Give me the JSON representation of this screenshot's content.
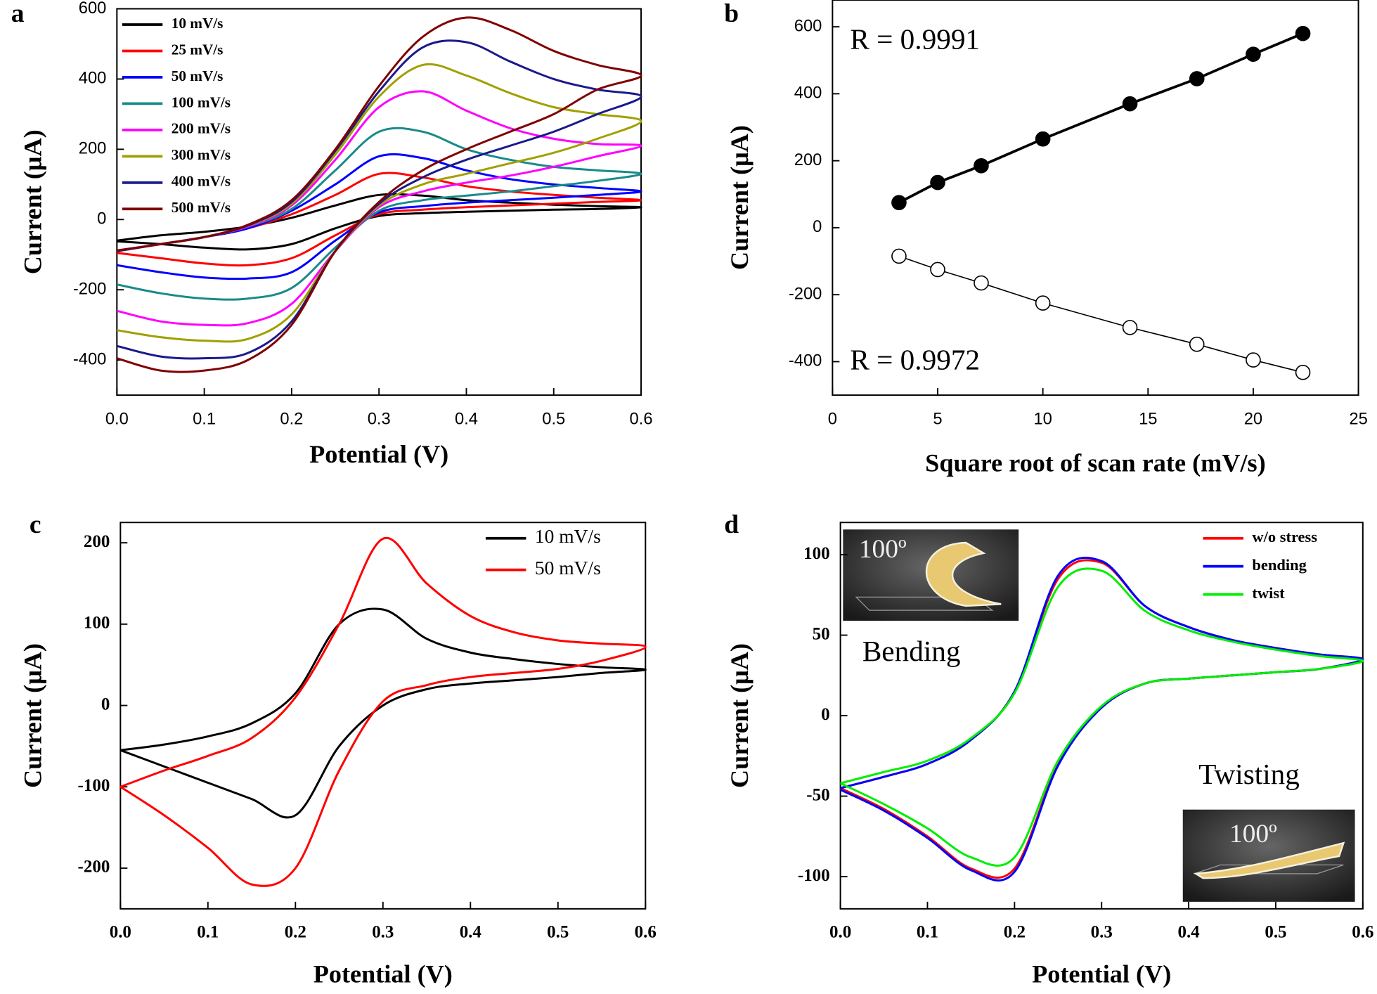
{
  "chart_data": [
    {
      "type": "line",
      "label": "a",
      "xlabel": "Potential (V)",
      "ylabel": "Current (μA)",
      "x": [
        0,
        0.05,
        0.1,
        0.15,
        0.2,
        0.25,
        0.3,
        0.35,
        0.4,
        0.45,
        0.5,
        0.55,
        0.6,
        0.55,
        0.5,
        0.45,
        0.4,
        0.35,
        0.3,
        0.25,
        0.2,
        0.15,
        0.1,
        0.05,
        0
      ],
      "xlim": [
        0,
        0.6
      ],
      "xticks": [
        {
          "value": 0,
          "label": "0.0"
        },
        0.1,
        0.2,
        0.3,
        0.4,
        0.5,
        0.6
      ],
      "ylim": [
        -500,
        600
      ],
      "yticks": [
        -400,
        -200,
        0,
        200,
        400,
        600
      ],
      "legend": "upper left",
      "series": [
        {
          "name": "10 mV/s",
          "color": "#000000",
          "values": [
            -60,
            -45,
            -35,
            -20,
            5,
            40,
            70,
            68,
            55,
            48,
            42,
            38,
            35,
            30,
            28,
            25,
            22,
            18,
            10,
            -25,
            -70,
            -85,
            -80,
            -70,
            -62
          ]
        },
        {
          "name": "25 mV/s",
          "color": "#ff0000",
          "values": [
            -90,
            -70,
            -50,
            -25,
            15,
            70,
            130,
            120,
            95,
            80,
            70,
            62,
            55,
            50,
            45,
            40,
            35,
            28,
            15,
            -45,
            -110,
            -130,
            -125,
            -110,
            -95
          ]
        },
        {
          "name": "50 mV/s",
          "color": "#0000ff",
          "values": [
            -90,
            -70,
            -50,
            -25,
            25,
            100,
            180,
            175,
            140,
            115,
            100,
            90,
            80,
            70,
            62,
            55,
            48,
            38,
            20,
            -60,
            -150,
            -168,
            -165,
            -150,
            -130
          ]
        },
        {
          "name": "100 mV/s",
          "color": "#1a8a8a",
          "values": [
            -90,
            -70,
            -50,
            -20,
            30,
            140,
            250,
            250,
            200,
            170,
            150,
            140,
            130,
            110,
            95,
            80,
            68,
            55,
            25,
            -80,
            -195,
            -225,
            -225,
            -210,
            -185
          ]
        },
        {
          "name": "200 mV/s",
          "color": "#ff00ff",
          "values": [
            -90,
            -70,
            -50,
            -20,
            40,
            170,
            320,
            365,
            310,
            260,
            230,
            215,
            210,
            180,
            150,
            125,
            105,
            80,
            35,
            -90,
            -240,
            -295,
            -300,
            -290,
            -260
          ]
        },
        {
          "name": "300 mV/s",
          "color": "#a0a000",
          "values": [
            -90,
            -70,
            -50,
            -18,
            45,
            185,
            350,
            440,
            410,
            360,
            320,
            300,
            280,
            230,
            190,
            160,
            130,
            100,
            40,
            -90,
            -270,
            -340,
            -345,
            -335,
            -315
          ]
        },
        {
          "name": "400 mV/s",
          "color": "#1a1a8a",
          "values": [
            -90,
            -70,
            -50,
            -17,
            50,
            195,
            365,
            490,
            505,
            450,
            400,
            370,
            350,
            300,
            250,
            210,
            170,
            120,
            45,
            -90,
            -290,
            -380,
            -395,
            -390,
            -360
          ]
        },
        {
          "name": "500 mV/s",
          "color": "#800000",
          "values": [
            -88,
            -70,
            -50,
            -15,
            55,
            200,
            380,
            520,
            575,
            540,
            480,
            440,
            410,
            370,
            300,
            250,
            200,
            140,
            50,
            -90,
            -300,
            -400,
            -430,
            -430,
            -395
          ]
        }
      ]
    },
    {
      "type": "scatter",
      "label": "b",
      "xlabel": "Square root of scan rate (mV/s)",
      "ylabel": "Current (μA)",
      "xlim": [
        0,
        25
      ],
      "xticks": [
        0,
        5,
        10,
        15,
        20,
        25
      ],
      "ylim": [
        -500,
        680
      ],
      "yticks": [
        -400,
        -200,
        0,
        200,
        400,
        600
      ],
      "annotations": [
        "R = 0.9991",
        "R = 0.9972"
      ],
      "series": [
        {
          "color": "#000000",
          "marker": "filled",
          "x": [
            3.16,
            5,
            7.07,
            10,
            14.14,
            17.32,
            20,
            22.36
          ],
          "values": [
            75,
            135,
            185,
            265,
            370,
            445,
            518,
            580
          ]
        },
        {
          "color": "#000000",
          "marker": "open",
          "x": [
            3.16,
            5,
            7.07,
            10,
            14.14,
            17.32,
            20,
            22.36
          ],
          "values": [
            -85,
            -125,
            -165,
            -225,
            -298,
            -348,
            -395,
            -432
          ]
        }
      ]
    },
    {
      "type": "line",
      "label": "c",
      "xlabel": "Potential (V)",
      "ylabel": "Current (μA)",
      "x": [
        0,
        0.05,
        0.1,
        0.15,
        0.2,
        0.25,
        0.3,
        0.35,
        0.4,
        0.45,
        0.5,
        0.55,
        0.6,
        0.55,
        0.5,
        0.45,
        0.4,
        0.35,
        0.3,
        0.25,
        0.2,
        0.15,
        0.1,
        0.05,
        0
      ],
      "xlim": [
        0,
        0.6
      ],
      "xticks": [
        {
          "value": 0,
          "label": "0.0"
        },
        0.1,
        0.2,
        0.3,
        0.4,
        0.5,
        0.6
      ],
      "ylim": [
        -250,
        225
      ],
      "yticks": [
        -200,
        -100,
        0,
        100,
        200
      ],
      "legend": "upper right",
      "series": [
        {
          "name": "10 mV/s",
          "color": "#000000",
          "values": [
            -55,
            -48,
            -38,
            -22,
            15,
            100,
            118,
            82,
            65,
            57,
            51,
            47,
            44,
            40,
            35,
            31,
            27,
            20,
            0,
            -50,
            -135,
            -115,
            -95,
            -75,
            -55
          ]
        },
        {
          "name": "50 mV/s",
          "color": "#ff0000",
          "values": [
            -100,
            -80,
            -62,
            -40,
            10,
            100,
            205,
            150,
            110,
            90,
            80,
            76,
            72,
            55,
            45,
            40,
            35,
            25,
            5,
            -80,
            -200,
            -220,
            -175,
            -135,
            -100
          ]
        }
      ]
    },
    {
      "type": "line",
      "label": "d",
      "xlabel": "Potential (V)",
      "ylabel": "Current (μA)",
      "x": [
        0,
        0.05,
        0.1,
        0.15,
        0.2,
        0.25,
        0.3,
        0.35,
        0.4,
        0.45,
        0.5,
        0.55,
        0.6,
        0.55,
        0.5,
        0.45,
        0.4,
        0.35,
        0.3,
        0.25,
        0.2,
        0.15,
        0.1,
        0.05,
        0
      ],
      "xlim": [
        0,
        0.6
      ],
      "xticks": [
        {
          "value": 0,
          "label": "0.0"
        },
        0.1,
        0.2,
        0.3,
        0.4,
        0.5,
        0.6
      ],
      "ylim": [
        -120,
        120
      ],
      "yticks": [
        -100,
        -50,
        0,
        50,
        100
      ],
      "legend": "upper right",
      "annotations": [
        "Bending",
        "Twisting"
      ],
      "insets": [
        "100º",
        "100º"
      ],
      "series": [
        {
          "name": "w/o stress",
          "color": "#ff0000",
          "values": [
            -45,
            -38,
            -30,
            -15,
            15,
            85,
            95,
            68,
            55,
            47,
            42,
            38,
            35,
            29,
            27,
            25,
            23,
            20,
            5,
            -30,
            -95,
            -95,
            -75,
            -58,
            -45
          ]
        },
        {
          "name": "bending",
          "color": "#0000ff",
          "values": [
            -45,
            -38,
            -30,
            -15,
            15,
            87,
            96,
            68,
            55,
            47,
            42,
            38,
            35,
            29,
            27,
            25,
            23,
            20,
            5,
            -31,
            -97,
            -96,
            -76,
            -59,
            -46
          ]
        },
        {
          "name": "twist",
          "color": "#00ee00",
          "values": [
            -42,
            -35,
            -28,
            -14,
            14,
            80,
            90,
            65,
            53,
            46,
            41,
            37,
            34,
            29,
            27,
            25,
            23,
            20,
            6,
            -28,
            -88,
            -88,
            -70,
            -55,
            -42
          ]
        }
      ]
    }
  ]
}
